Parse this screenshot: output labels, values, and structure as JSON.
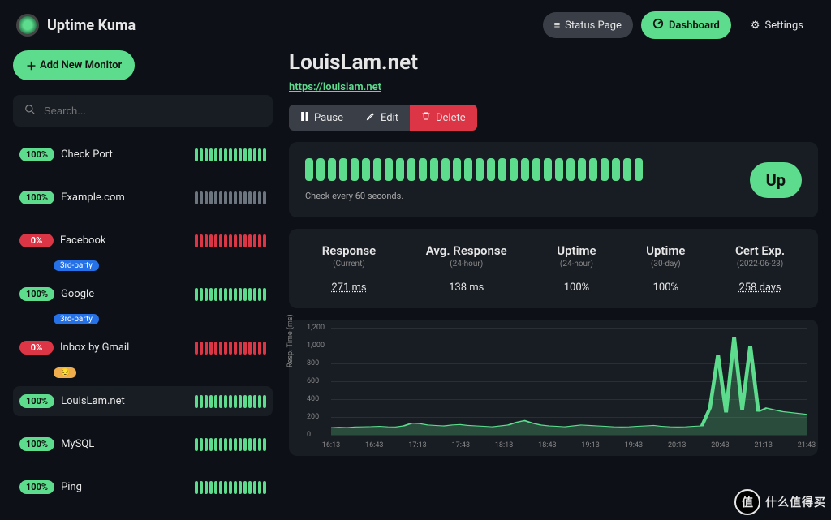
{
  "app_name": "Uptime Kuma",
  "nav": {
    "status": "Status Page",
    "dashboard": "Dashboard",
    "settings": "Settings"
  },
  "sidebar": {
    "add_label": "Add New Monitor",
    "search_placeholder": "Search...",
    "monitors": [
      {
        "name": "Check Port",
        "uptime": "100%",
        "badge_color": "#5cdc8c",
        "hb_color": "#5cdc8c",
        "active": false,
        "tag": null
      },
      {
        "name": "Example.com",
        "uptime": "100%",
        "badge_color": "#5cdc8c",
        "hb_color": "#6c757d",
        "active": false,
        "tag": null
      },
      {
        "name": "Facebook",
        "uptime": "0%",
        "badge_color": "#dc3545",
        "hb_color": "#dc3545",
        "active": false,
        "tag": {
          "label": "3rd-party",
          "color": "#2471e8"
        }
      },
      {
        "name": "Google",
        "uptime": "100%",
        "badge_color": "#5cdc8c",
        "hb_color": "#5cdc8c",
        "active": false,
        "tag": {
          "label": "3rd-party",
          "color": "#2471e8"
        }
      },
      {
        "name": "Inbox by Gmail",
        "uptime": "0%",
        "badge_color": "#dc3545",
        "hb_color": "#dc3545",
        "active": false,
        "tag": {
          "label": "",
          "color": "#f0ad4e"
        }
      },
      {
        "name": "LouisLam.net",
        "uptime": "100%",
        "badge_color": "#5cdc8c",
        "hb_color": "#5cdc8c",
        "active": true,
        "tag": null
      },
      {
        "name": "MySQL",
        "uptime": "100%",
        "badge_color": "#5cdc8c",
        "hb_color": "#5cdc8c",
        "active": false,
        "tag": null
      },
      {
        "name": "Ping",
        "uptime": "100%",
        "badge_color": "#5cdc8c",
        "hb_color": "#5cdc8c",
        "active": false,
        "tag": null
      }
    ]
  },
  "detail": {
    "title": "LouisLam.net",
    "url": "https://louislam.net",
    "actions": {
      "pause": "Pause",
      "edit": "Edit",
      "delete": "Delete"
    },
    "status": "Up",
    "check_text": "Check every 60 seconds.",
    "heartbeat_count": 30,
    "heartbeat_color": "#5cdc8c"
  },
  "stats": [
    {
      "title": "Response",
      "sub": "(Current)",
      "value": "271 ms",
      "dotted": true
    },
    {
      "title": "Avg. Response",
      "sub": "(24-hour)",
      "value": "138 ms",
      "dotted": false
    },
    {
      "title": "Uptime",
      "sub": "(24-hour)",
      "value": "100%",
      "dotted": false
    },
    {
      "title": "Uptime",
      "sub": "(30-day)",
      "value": "100%",
      "dotted": false
    },
    {
      "title": "Cert Exp.",
      "sub": "(2022-06-23)",
      "value": "258 days",
      "dotted": true
    }
  ],
  "chart": {
    "ylabel": "Resp. Time (ms)",
    "ylim": [
      0,
      1200
    ],
    "ytick_step": 200,
    "xticks": [
      "16:13",
      "16:43",
      "17:13",
      "17:43",
      "18:13",
      "18:43",
      "19:13",
      "19:43",
      "20:13",
      "20:43",
      "21:13",
      "21:43"
    ],
    "line_color": "#5cdc8c",
    "fill_color": "rgba(92,220,140,0.25)",
    "grid_color": "#2a2e35",
    "data": [
      80,
      85,
      82,
      88,
      90,
      92,
      95,
      90,
      88,
      100,
      130,
      125,
      110,
      105,
      100,
      110,
      115,
      105,
      100,
      95,
      90,
      100,
      110,
      140,
      160,
      130,
      110,
      100,
      95,
      90,
      100,
      110,
      105,
      100,
      95,
      90,
      88,
      90,
      95,
      100,
      105,
      95,
      90,
      88,
      90,
      95,
      100,
      300,
      900,
      250,
      1100,
      280,
      1000,
      260,
      300,
      280,
      260,
      250,
      240,
      230
    ]
  },
  "watermark": "什么值得买"
}
